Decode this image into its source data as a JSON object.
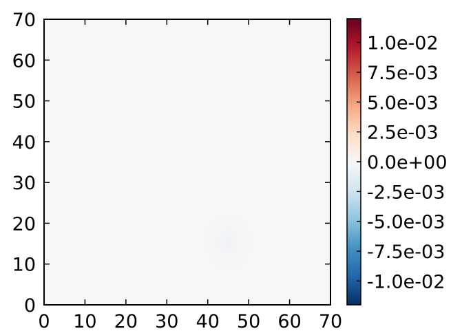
{
  "chart_data": {
    "type": "heatmap",
    "title": "",
    "xlabel": "",
    "ylabel": "",
    "xlim": [
      0,
      70
    ],
    "ylim": [
      0,
      70
    ],
    "xticks": [
      "0",
      "10",
      "20",
      "30",
      "40",
      "50",
      "60",
      "70"
    ],
    "yticks": [
      "0",
      "10",
      "20",
      "30",
      "40",
      "50",
      "60",
      "70"
    ],
    "colormap": "RdBu_r",
    "background_value": 0.0,
    "faint_region": {
      "x_range": [
        38,
        52
      ],
      "y_range": [
        7,
        24
      ],
      "approx_magnitude": 0.0003
    },
    "colorbar": {
      "vmin": -0.012,
      "vmax": 0.012,
      "tick_values": [
        0.01,
        0.0075,
        0.005,
        0.0025,
        0.0,
        -0.0025,
        -0.005,
        -0.0075,
        -0.01
      ],
      "tick_labels": [
        "1.0e-02",
        "7.5e-03",
        "5.0e-03",
        "2.5e-03",
        "0.0e+00",
        "-2.5e-03",
        "-5.0e-03",
        "-7.5e-03",
        "-1.0e-02"
      ]
    },
    "colors": {
      "neutral": "#f7f7f7",
      "max": "#67001f",
      "min": "#053061"
    }
  }
}
